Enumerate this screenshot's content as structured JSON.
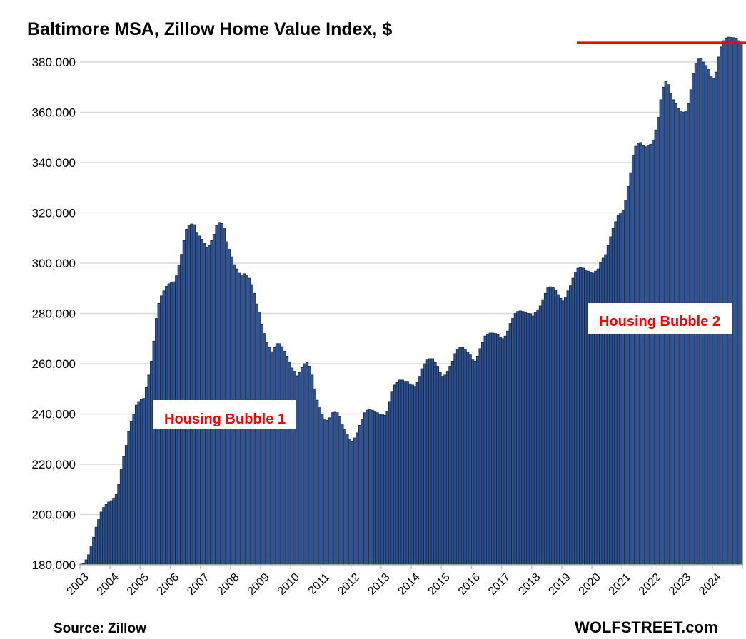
{
  "chart_data": {
    "type": "bar",
    "title": "Baltimore MSA, Zillow Home Value Index, $",
    "xlabel": "",
    "ylabel": "",
    "frequency": "monthly",
    "start": "2003-01",
    "end": "2024-12",
    "ylim": [
      180000,
      390000
    ],
    "yticks": [
      180000,
      200000,
      220000,
      240000,
      260000,
      280000,
      300000,
      320000,
      340000,
      360000,
      380000
    ],
    "ytick_labels": [
      "180,000",
      "200,000",
      "220,000",
      "240,000",
      "260,000",
      "280,000",
      "300,000",
      "320,000",
      "340,000",
      "360,000",
      "380,000"
    ],
    "xtick_labels": [
      "2003",
      "2004",
      "2005",
      "2006",
      "2007",
      "2008",
      "2009",
      "2010",
      "2011",
      "2012",
      "2013",
      "2014",
      "2015",
      "2016",
      "2017",
      "2018",
      "2019",
      "2020",
      "2021",
      "2022",
      "2023",
      "2024"
    ],
    "grid": true,
    "legend": "none",
    "colors": {
      "bar": "#2f5597",
      "bar_edge": "#1b2438",
      "grid": "#d9d9d9",
      "annotation": "#ff0000",
      "reference_line": "#ff0000"
    },
    "reference_line": {
      "value": 387700,
      "label": "",
      "from": "2019-08"
    },
    "annotations": [
      {
        "text": "Housing Bubble 1",
        "near": "2006"
      },
      {
        "text": "Housing Bubble 2",
        "near": "2021"
      }
    ],
    "values": [
      180300,
      180500,
      182000,
      184000,
      187500,
      191000,
      195000,
      198000,
      201000,
      202800,
      204000,
      205000,
      205500,
      206500,
      208000,
      212000,
      218000,
      223000,
      227500,
      233000,
      237000,
      240000,
      243500,
      245000,
      245800,
      246200,
      250500,
      255500,
      261000,
      269000,
      278000,
      284000,
      287000,
      289000,
      290800,
      291800,
      292200,
      292600,
      295000,
      299000,
      303500,
      309000,
      313500,
      315000,
      315600,
      315300,
      312000,
      310800,
      309500,
      307800,
      306200,
      307000,
      309000,
      311500,
      315000,
      316200,
      315800,
      314000,
      308500,
      305500,
      302500,
      299400,
      297700,
      296000,
      295300,
      295800,
      295300,
      294000,
      291500,
      288000,
      283800,
      280500,
      275500,
      272000,
      268500,
      266500,
      264800,
      266500,
      268000,
      268000,
      266800,
      265000,
      263000,
      260500,
      258300,
      257000,
      255200,
      256500,
      258500,
      260000,
      260500,
      259000,
      255500,
      250000,
      245500,
      242500,
      240000,
      238000,
      237500,
      238500,
      240500,
      240700,
      240500,
      239000,
      236000,
      234000,
      232000,
      230000,
      229000,
      230500,
      232500,
      235500,
      238000,
      240500,
      241500,
      242000,
      241500,
      241000,
      240500,
      240000,
      240000,
      239500,
      241000,
      245000,
      249000,
      251500,
      252500,
      253500,
      253500,
      253000,
      253000,
      252000,
      251500,
      251000,
      252500,
      255000,
      258000,
      260000,
      261500,
      262000,
      262000,
      260500,
      259000,
      256500,
      255000,
      255500,
      257000,
      259000,
      261000,
      264000,
      265500,
      266500,
      266500,
      265500,
      264500,
      263500,
      261500,
      261000,
      263000,
      266000,
      268500,
      271000,
      271800,
      272200,
      272200,
      272000,
      271500,
      270500,
      270000,
      271000,
      273000,
      276000,
      278000,
      280000,
      280800,
      281000,
      280800,
      280500,
      280000,
      279900,
      279000,
      280400,
      281500,
      283000,
      285500,
      288000,
      290200,
      290600,
      290300,
      289200,
      287500,
      286000,
      285000,
      286500,
      289000,
      291000,
      294000,
      296500,
      298000,
      298300,
      298000,
      297000,
      296800,
      296300,
      296000,
      296800,
      297700,
      300300,
      302000,
      303400,
      307000,
      310500,
      313800,
      316500,
      319000,
      320000,
      321000,
      325000,
      330500,
      336000,
      343000,
      346500,
      347800,
      348000,
      346800,
      346300,
      346800,
      347300,
      349000,
      353000,
      358000,
      365000,
      370000,
      372200,
      371000,
      367500,
      365000,
      363500,
      361500,
      360500,
      360100,
      360500,
      363500,
      369000,
      375500,
      379500,
      381200,
      381400,
      380000,
      378600,
      377000,
      374500,
      373500,
      376000,
      382000,
      386000,
      388500,
      389600,
      389900,
      389800,
      389700,
      389500,
      388500,
      387500
    ]
  },
  "footer": {
    "source": "Source: Zillow",
    "brand": "WOLFSTREET.com"
  }
}
